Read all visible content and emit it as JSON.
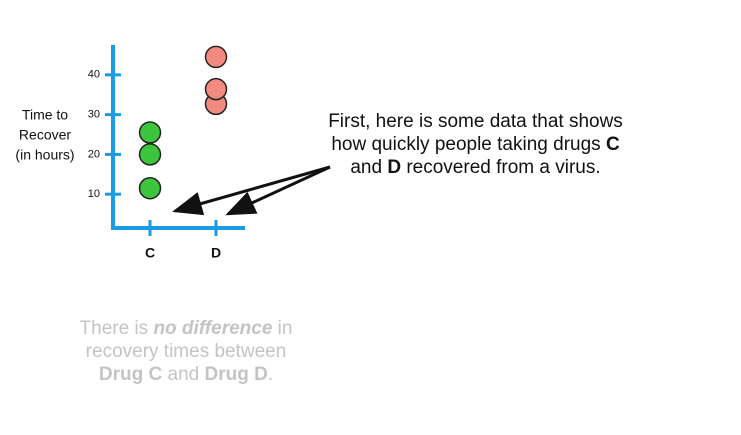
{
  "chart_data": {
    "type": "strip",
    "ylabel": [
      "Time to",
      "Recover",
      "(in hours)"
    ],
    "categories": [
      "C",
      "D"
    ],
    "values": [
      [
        11.5,
        20,
        25.5
      ],
      [
        32.7,
        36.4,
        44.5
      ]
    ],
    "colors": [
      "#3cc43c",
      "#f28a80"
    ],
    "axis_color": "#1a9be8",
    "ylim": [
      1.5,
      47.5
    ],
    "yticks": [
      10,
      20,
      30,
      40
    ]
  },
  "annotation": [
    "First, here is some data that shows how quickly people taking drugs ",
    "C",
    " and ",
    "D",
    " recovered from a virus."
  ],
  "hypothesis": [
    "There is ",
    "no difference",
    " in recovery times between ",
    "Drug C",
    " and ",
    "Drug D",
    "."
  ]
}
